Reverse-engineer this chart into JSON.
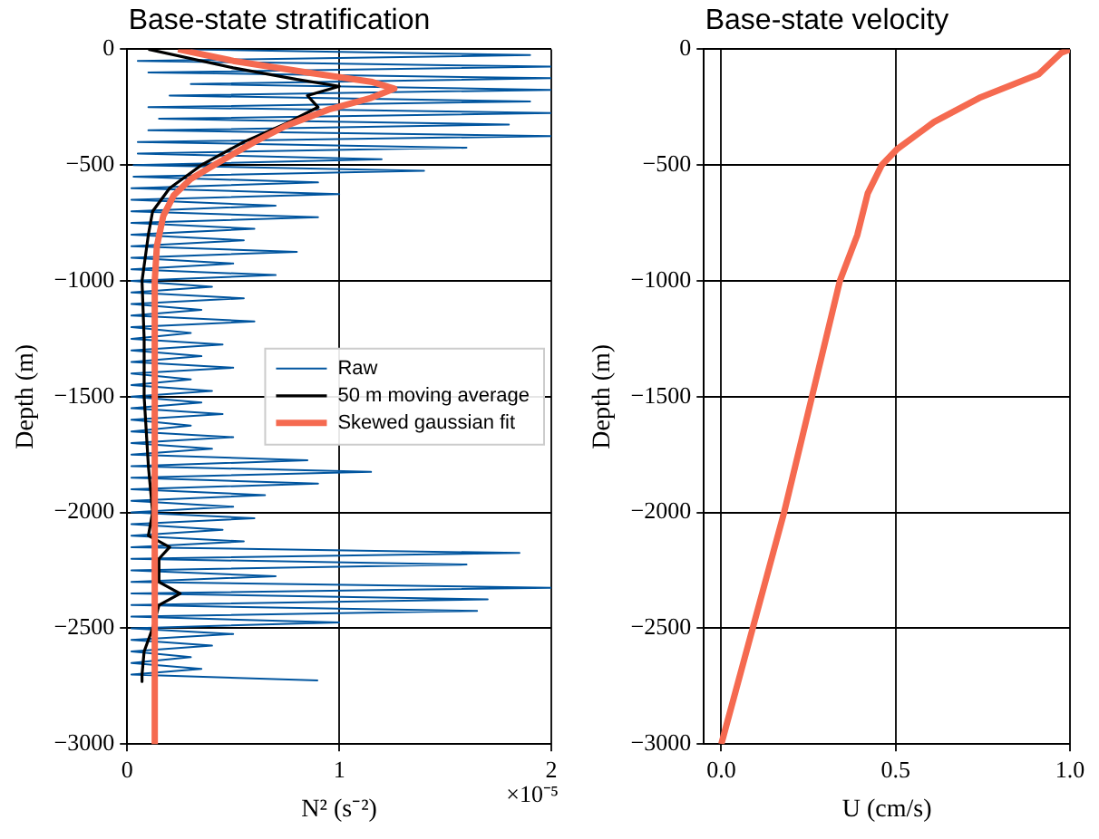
{
  "chart_data": [
    {
      "type": "line",
      "title": "Base-state stratification",
      "xlabel": "N² (s⁻²)",
      "ylabel": "Depth (m)",
      "xlim": [
        0,
        2
      ],
      "xticks": [
        0,
        1,
        2
      ],
      "ylim": [
        -3000,
        0
      ],
      "yticks": [
        {
          "value": -3000,
          "label": "−3000"
        },
        {
          "value": -2500,
          "label": "−2500"
        },
        {
          "value": -2000,
          "label": "−2000"
        },
        {
          "value": -1500,
          "label": "−1500"
        },
        {
          "value": -1000,
          "label": "−1000"
        },
        {
          "value": -500,
          "label": "−500"
        },
        0
      ],
      "grid": true,
      "legend": "right",
      "annotations": [
        "×10⁻⁵"
      ],
      "series": [
        {
          "name": "Raw",
          "color": "#00559f",
          "x": [
            0.3,
            1.9,
            0.05,
            2.0,
            0.1,
            2.0,
            0.3,
            2.0,
            0.2,
            1.9,
            0.1,
            2.0,
            0.15,
            1.8,
            0.1,
            2.0,
            0.05,
            1.6,
            0.05,
            1.2,
            0.03,
            1.4,
            0.03,
            0.9,
            0.02,
            1.0,
            0.02,
            0.7,
            0.02,
            0.9,
            0.02,
            0.6,
            0.02,
            0.55,
            0.02,
            0.8,
            0.02,
            0.5,
            0.02,
            0.7,
            0.02,
            0.4,
            0.02,
            0.55,
            0.02,
            0.35,
            0.02,
            0.6,
            0.02,
            0.3,
            0.02,
            0.45,
            0.02,
            0.35,
            0.02,
            0.5,
            0.02,
            0.3,
            0.02,
            0.4,
            0.02,
            0.35,
            0.02,
            0.45,
            0.02,
            0.3,
            0.02,
            0.5,
            0.02,
            0.4,
            0.02,
            0.85,
            0.02,
            1.15,
            0.02,
            0.9,
            0.02,
            0.65,
            0.02,
            0.5,
            0.02,
            0.6,
            0.02,
            0.45,
            0.02,
            0.55,
            0.02,
            1.85,
            0.02,
            1.6,
            0.02,
            0.7,
            0.02,
            2.0,
            0.02,
            1.7,
            0.02,
            1.65,
            0.02,
            1.0,
            0.02,
            0.5,
            0.02,
            0.4,
            0.02,
            0.3,
            0.02,
            0.35,
            0.02,
            0.9
          ],
          "values": [
            0,
            -25,
            -50,
            -75,
            -100,
            -125,
            -150,
            -175,
            -200,
            -225,
            -250,
            -275,
            -300,
            -325,
            -350,
            -375,
            -400,
            -425,
            -450,
            -475,
            -500,
            -525,
            -550,
            -575,
            -600,
            -625,
            -650,
            -675,
            -700,
            -725,
            -750,
            -775,
            -800,
            -825,
            -850,
            -875,
            -900,
            -925,
            -950,
            -975,
            -1000,
            -1025,
            -1050,
            -1075,
            -1100,
            -1125,
            -1150,
            -1175,
            -1200,
            -1225,
            -1250,
            -1275,
            -1300,
            -1325,
            -1350,
            -1375,
            -1400,
            -1425,
            -1450,
            -1475,
            -1500,
            -1525,
            -1550,
            -1575,
            -1600,
            -1625,
            -1650,
            -1675,
            -1700,
            -1725,
            -1750,
            -1775,
            -1800,
            -1825,
            -1850,
            -1875,
            -1900,
            -1925,
            -1950,
            -1975,
            -2000,
            -2025,
            -2050,
            -2075,
            -2100,
            -2125,
            -2150,
            -2175,
            -2200,
            -2225,
            -2250,
            -2275,
            -2300,
            -2325,
            -2350,
            -2375,
            -2400,
            -2425,
            -2450,
            -2475,
            -2500,
            -2525,
            -2550,
            -2575,
            -2600,
            -2625,
            -2650,
            -2675,
            -2700,
            -2725
          ]
        },
        {
          "name": "50 m moving average",
          "color": "#000000",
          "x": [
            0.1,
            0.5,
            0.8,
            1.0,
            0.85,
            0.9,
            0.75,
            0.55,
            0.35,
            0.2,
            0.12,
            0.1,
            0.07,
            0.08,
            0.08,
            0.1,
            0.12,
            0.1,
            0.2,
            0.15,
            0.15,
            0.25,
            0.15,
            0.12,
            0.08,
            0.07,
            0.07
          ],
          "values": [
            0,
            -80,
            -130,
            -160,
            -200,
            -250,
            -320,
            -400,
            -500,
            -600,
            -700,
            -800,
            -1000,
            -1250,
            -1500,
            -1800,
            -2000,
            -2100,
            -2150,
            -2200,
            -2300,
            -2350,
            -2400,
            -2500,
            -2600,
            -2700,
            -2730
          ]
        },
        {
          "name": "Skewed gaussian fit",
          "color": "#f56a50",
          "x": [
            0.24,
            0.5,
            0.85,
            1.15,
            1.26,
            1.15,
            0.95,
            0.75,
            0.6,
            0.42,
            0.3,
            0.22,
            0.17,
            0.14,
            0.13,
            0.13
          ],
          "values": [
            0,
            -50,
            -100,
            -140,
            -170,
            -210,
            -260,
            -330,
            -400,
            -494,
            -560,
            -630,
            -720,
            -850,
            -1000,
            -3000
          ]
        }
      ]
    },
    {
      "type": "line",
      "title": "Base-state velocity",
      "xlabel": "U (cm/s)",
      "ylabel": "Depth (m)",
      "xlim": [
        -0.05,
        1.0
      ],
      "xticks": [
        {
          "value": 0,
          "label": "0.0"
        },
        {
          "value": 0.5,
          "label": "0.5"
        },
        {
          "value": 1,
          "label": "1.0"
        }
      ],
      "ylim": [
        -3000,
        0
      ],
      "yticks": [
        {
          "value": -3000,
          "label": "−3000"
        },
        {
          "value": -2500,
          "label": "−2500"
        },
        {
          "value": -2000,
          "label": "−2000"
        },
        {
          "value": -1500,
          "label": "−1500"
        },
        {
          "value": -1000,
          "label": "−1000"
        },
        {
          "value": -500,
          "label": "−500"
        },
        0
      ],
      "grid": true,
      "series": [
        {
          "color": "#f56a50",
          "x": [
            1.0,
            0.975,
            0.91,
            0.74,
            0.61,
            0.505,
            0.46,
            0.42,
            0.39,
            0.34,
            0.26,
            0.18,
            0.09,
            0.0
          ],
          "values": [
            0,
            -15,
            -108,
            -210,
            -314,
            -430,
            -500,
            -622,
            -802,
            -1000,
            -1500,
            -2000,
            -2500,
            -3000
          ]
        }
      ]
    }
  ]
}
